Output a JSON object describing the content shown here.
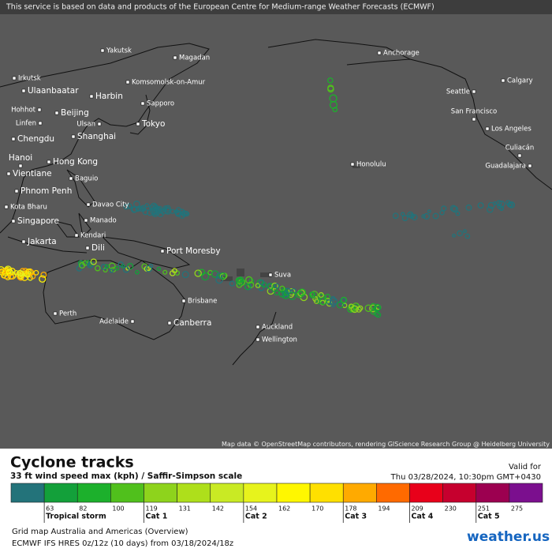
{
  "banner": "This service is based on data and products of the European Centre for Medium-range Weather Forecasts (ECMWF)",
  "cities": [
    "Yakutsk",
    "Magadan",
    "Anchorage",
    "Irkutsk",
    "Ulaanbaatar",
    "Komsomolsk-on-Amur",
    "Seattle",
    "Calgary",
    "Harbin",
    "Sapporo",
    "Hohhot",
    "Beijing",
    "San Francisco",
    "Linfen",
    "Ulsan",
    "Tokyo",
    "Los Angeles",
    "Chengdu",
    "Shanghai",
    "Culiacán",
    "Guadalajara",
    "Hanoi",
    "Hong Kong",
    "Honolulu",
    "Vientiane",
    "Baguio",
    "Phnom Penh",
    "Kota Bharu",
    "Davao City",
    "Singapore",
    "Manado",
    "Kendari",
    "Jakarta",
    "Dili",
    "Port Moresby",
    "Suva",
    "Brisbane",
    "Perth",
    "Adelaide",
    "Canberra",
    "Auckland",
    "Wellington"
  ],
  "attribution": "Map data © OpenStreetMap contributors, rendering GIScience Research Group @ Heidelberg University",
  "legend": {
    "title": "Cyclone tracks",
    "subtitle": "33 ft wind speed max (kph) / Saffir-Simpson scale",
    "valid_label": "Valid for",
    "valid_time": "Thu 03/28/2024, 10:30pm GMT+0430",
    "scale": {
      "colors": [
        "#23737a",
        "#13a03a",
        "#1cb02c",
        "#50c01c",
        "#8ed31c",
        "#aedf1b",
        "#c9ea24",
        "#e7f31c",
        "#fff700",
        "#ffe000",
        "#ffaa00",
        "#ff6a00",
        "#e8001a",
        "#c6002e",
        "#9c0050",
        "#7b0f8e"
      ],
      "ticks": [
        63,
        82,
        100,
        119,
        131,
        142,
        154,
        162,
        170,
        178,
        194,
        209,
        230,
        251,
        275
      ]
    },
    "categories": [
      "Tropical storm",
      "Cat 1",
      "Cat 2",
      "Cat 3",
      "Cat 4",
      "Cat 5"
    ],
    "grid_map": "Grid map Australia and Americas (Overview)",
    "model_run": "ECMWF IFS HRES 0z/12z (10 days) from 03/18/2024/18z",
    "logo": "weather.us"
  }
}
